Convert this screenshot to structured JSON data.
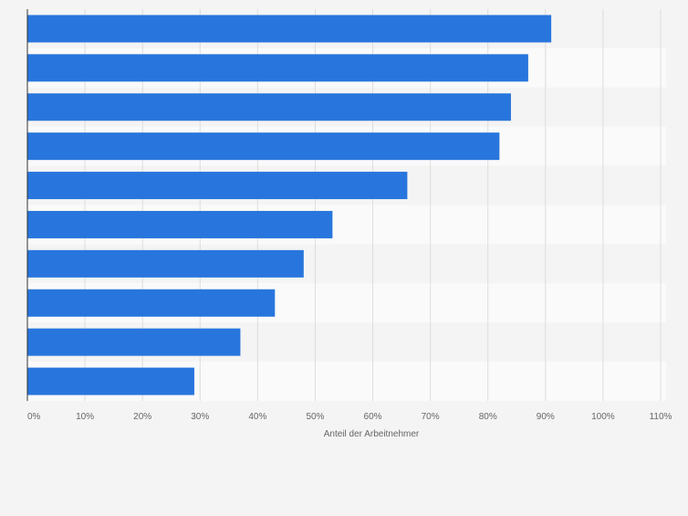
{
  "chart_data": {
    "type": "bar",
    "orientation": "horizontal",
    "categories": [
      "",
      "",
      "",
      "",
      "",
      "",
      "",
      "",
      "",
      ""
    ],
    "values": [
      91,
      87,
      84,
      82,
      66,
      53,
      48,
      43,
      37,
      29
    ],
    "xlabel": "Anteil der Arbeitnehmer",
    "ylabel": "",
    "xlim": [
      0,
      110
    ],
    "ticks": [
      "0%",
      "10%",
      "20%",
      "30%",
      "40%",
      "50%",
      "60%",
      "70%",
      "80%",
      "90%",
      "100%",
      "110%"
    ],
    "grid": true,
    "legend": "none",
    "bar_color": "#2876dd",
    "band_colors": [
      "#f4f4f4",
      "#fafafa"
    ],
    "grid_color": "#dddddd",
    "axis_color": "#333333",
    "tick_label_color": "#666666"
  }
}
